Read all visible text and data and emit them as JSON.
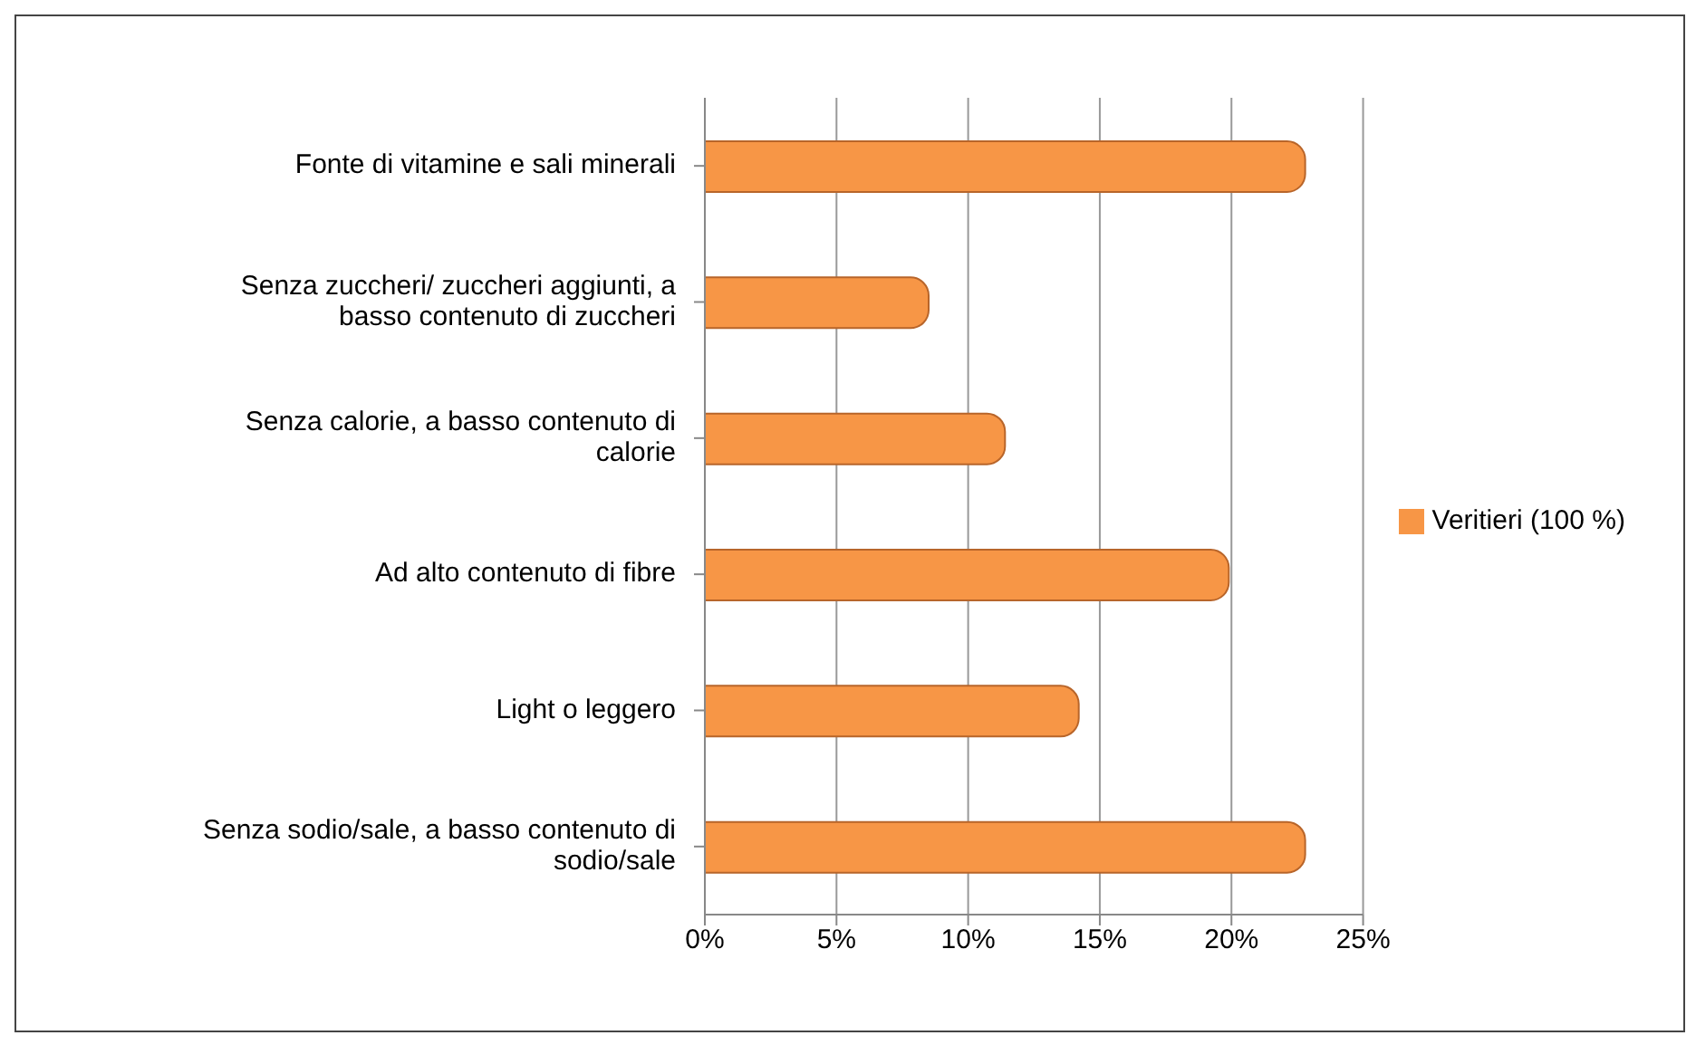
{
  "chart_data": {
    "type": "bar",
    "orientation": "horizontal",
    "categories": [
      "Fonte di vitamine e sali minerali",
      "Senza zuccheri/ zuccheri aggiunti, a basso contenuto di zuccheri",
      "Senza calorie, a basso contenuto di calorie",
      "Ad alto contenuto di fibre",
      "Light o leggero",
      "Senza sodio/sale, a basso contenuto di sodio/sale"
    ],
    "series": [
      {
        "name": "Veritieri (100 %)",
        "color": "#f79646",
        "values": [
          22.8,
          8.5,
          11.4,
          19.9,
          14.2,
          22.8
        ]
      }
    ],
    "xlim": [
      0,
      25
    ],
    "xticks": [
      {
        "value": 0,
        "label": "0%"
      },
      {
        "value": 5,
        "label": "5%"
      },
      {
        "value": 10,
        "label": "10%"
      },
      {
        "value": 15,
        "label": "15%"
      },
      {
        "value": 20,
        "label": "20%"
      },
      {
        "value": 25,
        "label": "25%"
      }
    ],
    "grid": "x",
    "legend": "right"
  }
}
